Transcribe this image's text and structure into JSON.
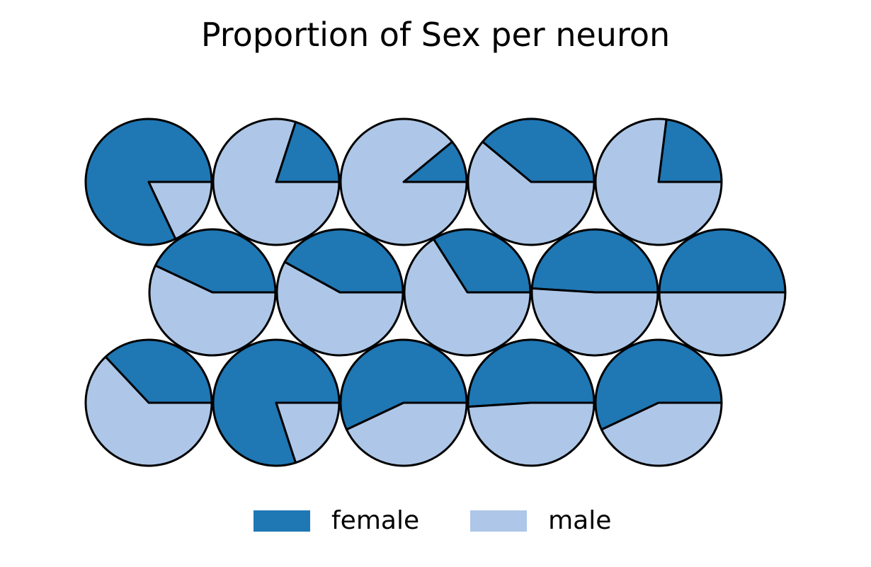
{
  "colors": {
    "female": "#1f77b4",
    "male": "#aec7e8",
    "outline": "#000000"
  },
  "chart_data": {
    "type": "pie",
    "title": "Proportion of Sex per neuron",
    "layout": "hexagonal grid of pies, 3 rows x 5 columns, middle row offset",
    "legend": {
      "placement": "bottom-center",
      "entries": [
        "female",
        "male"
      ]
    },
    "series": [
      "female",
      "male"
    ],
    "neurons": [
      {
        "row": 0,
        "col": 0,
        "female": 0.82,
        "male": 0.18
      },
      {
        "row": 0,
        "col": 1,
        "female": 0.2,
        "male": 0.8
      },
      {
        "row": 0,
        "col": 2,
        "female": 0.11,
        "male": 0.89
      },
      {
        "row": 0,
        "col": 3,
        "female": 0.39,
        "male": 0.61
      },
      {
        "row": 0,
        "col": 4,
        "female": 0.23,
        "male": 0.77
      },
      {
        "row": 1,
        "col": 0,
        "female": 0.43,
        "male": 0.57
      },
      {
        "row": 1,
        "col": 1,
        "female": 0.42,
        "male": 0.58
      },
      {
        "row": 1,
        "col": 2,
        "female": 0.34,
        "male": 0.66
      },
      {
        "row": 1,
        "col": 3,
        "female": 0.49,
        "male": 0.51
      },
      {
        "row": 1,
        "col": 4,
        "female": 0.5,
        "male": 0.5
      },
      {
        "row": 2,
        "col": 0,
        "female": 0.37,
        "male": 0.63
      },
      {
        "row": 2,
        "col": 1,
        "female": 0.8,
        "male": 0.2
      },
      {
        "row": 2,
        "col": 2,
        "female": 0.57,
        "male": 0.43
      },
      {
        "row": 2,
        "col": 3,
        "female": 0.51,
        "male": 0.49
      },
      {
        "row": 2,
        "col": 4,
        "female": 0.57,
        "male": 0.43
      }
    ]
  }
}
